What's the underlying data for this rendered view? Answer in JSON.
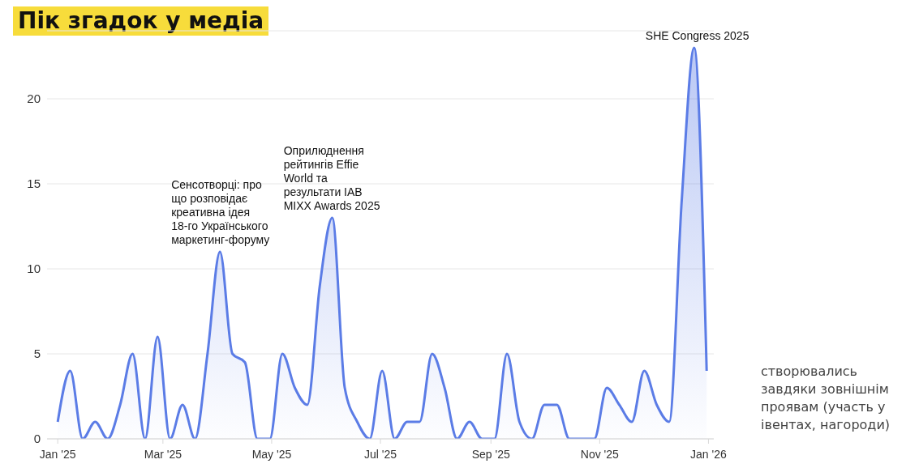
{
  "chart_data": {
    "type": "area",
    "title": "Пік згадок у медіа",
    "x": [
      "2025-01-01",
      "2025-01-08",
      "2025-01-15",
      "2025-01-22",
      "2025-01-29",
      "2025-02-05",
      "2025-02-12",
      "2025-02-19",
      "2025-02-26",
      "2025-03-05",
      "2025-03-12",
      "2025-03-19",
      "2025-03-26",
      "2025-04-02",
      "2025-04-09",
      "2025-04-16",
      "2025-04-23",
      "2025-04-30",
      "2025-05-07",
      "2025-05-14",
      "2025-05-21",
      "2025-05-28",
      "2025-06-04",
      "2025-06-11",
      "2025-06-18",
      "2025-06-25",
      "2025-07-02",
      "2025-07-09",
      "2025-07-16",
      "2025-07-23",
      "2025-07-30",
      "2025-08-06",
      "2025-08-13",
      "2025-08-20",
      "2025-08-27",
      "2025-09-03",
      "2025-09-10",
      "2025-09-17",
      "2025-09-24",
      "2025-10-01",
      "2025-10-08",
      "2025-10-15",
      "2025-10-22",
      "2025-10-29",
      "2025-11-05",
      "2025-11-12",
      "2025-11-19",
      "2025-11-26",
      "2025-12-03",
      "2025-12-10",
      "2025-12-17",
      "2025-12-24",
      "2025-12-31"
    ],
    "series": [
      {
        "color": "#5b7ce6",
        "values": [
          1,
          4,
          0,
          1,
          0,
          2,
          5,
          0,
          6,
          0,
          2,
          0,
          5,
          11,
          5,
          4.5,
          0,
          0,
          5,
          3,
          2,
          9,
          13,
          3,
          1,
          0,
          4,
          0,
          1,
          1,
          5,
          3,
          0,
          1,
          0,
          0,
          5,
          1,
          0,
          2,
          2,
          0,
          0,
          0,
          3,
          2,
          1,
          4,
          2,
          1,
          14,
          23,
          4
        ]
      }
    ],
    "xlim": [
      "2024-12-26",
      "2026-01-04"
    ],
    "xticks": [
      {
        "value": "2025-01-01",
        "label": "Jan '25"
      },
      {
        "value": "2025-03-01",
        "label": "Mar '25"
      },
      {
        "value": "2025-05-01",
        "label": "May '25"
      },
      {
        "value": "2025-07-01",
        "label": "Jul '25"
      },
      {
        "value": "2025-09-01",
        "label": "Sep '25"
      },
      {
        "value": "2025-11-01",
        "label": "Nov '25"
      },
      {
        "value": "2026-01-01",
        "label": "Jan '26"
      }
    ],
    "ylim": [
      0,
      24
    ],
    "yticks": [
      0,
      5,
      10,
      15,
      20
    ],
    "grid": "y",
    "legend": false,
    "marker": "none",
    "line_style": "solid",
    "annotations": [
      {
        "text": "Сенсотворці: про що розповідає креативна ідея 18-го Українського маркетинг-форуму",
        "x": "2025-04-02",
        "y": 11
      },
      {
        "text": "Оприлюднення рейтингів Effie World та результати IAB MIXX Awards 2025",
        "x": "2025-06-04",
        "y": 13
      },
      {
        "text": "SHE Congress 2025",
        "x": "2025-12-24",
        "y": 23
      },
      "створювались завдяки зовнішнім проявам (участь у івентах, нагороди)"
    ]
  }
}
